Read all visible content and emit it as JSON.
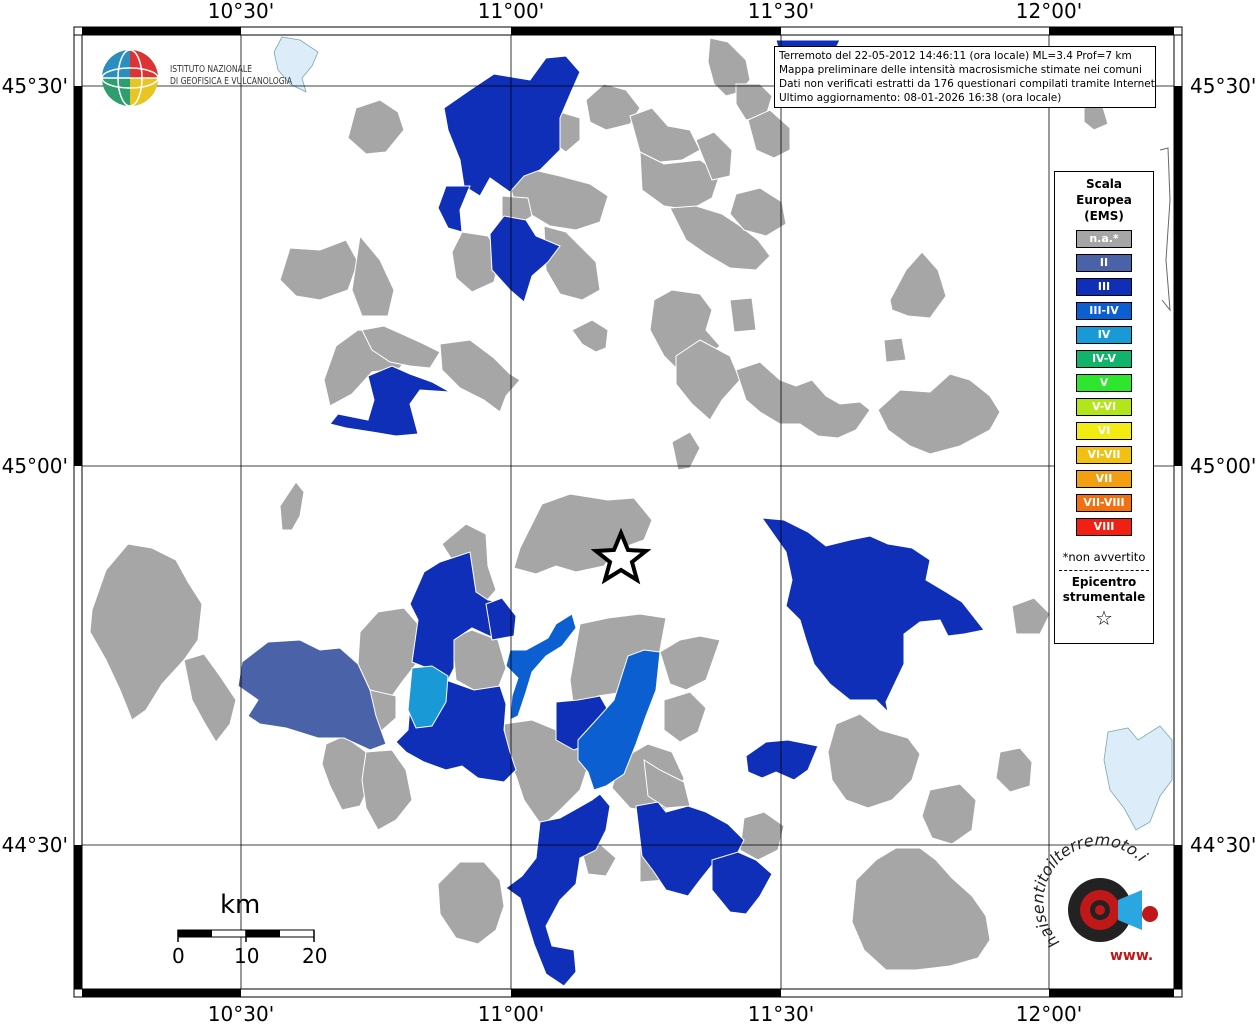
{
  "map": {
    "lon_labels": [
      "10°30'",
      "11°00'",
      "11°30'",
      "12°00'"
    ],
    "lat_labels": [
      "45°30'",
      "45°00'",
      "44°30'"
    ]
  },
  "logo": {
    "line1": "ISTITUTO NAZIONALE",
    "line2": "DI GEOFISICA E VULCANOLOGIA"
  },
  "info": {
    "line1": "Terremoto del 22-05-2012 14:46:11 (ora locale) ML=3.4 Prof=7 km",
    "line2": "Mappa preliminare delle intensità macrosismiche stimate nei comuni",
    "line3": "Dati non verificati estratti da 176 questionari compilati tramite Internet.",
    "line4": "Ultimo aggiornamento: 08-01-2026 16:38 (ora locale)"
  },
  "legend": {
    "title1": "Scala",
    "title2": "Europea",
    "title3": "(EMS)",
    "items": [
      {
        "label": "n.a.*",
        "color": "#a6a6a6"
      },
      {
        "label": "II",
        "color": "#4a63a8"
      },
      {
        "label": "III",
        "color": "#0f2fb8"
      },
      {
        "label": "III-IV",
        "color": "#0c5fd1"
      },
      {
        "label": "IV",
        "color": "#199ad6"
      },
      {
        "label": "IV-V",
        "color": "#12b36b"
      },
      {
        "label": "V",
        "color": "#2ee62e"
      },
      {
        "label": "V-VI",
        "color": "#b3e61a"
      },
      {
        "label": "VI",
        "color": "#f2ec12"
      },
      {
        "label": "VI-VII",
        "color": "#f2bf12"
      },
      {
        "label": "VII",
        "color": "#f2a012"
      },
      {
        "label": "VII-VIII",
        "color": "#f27012"
      },
      {
        "label": "VIII",
        "color": "#f22012"
      }
    ],
    "note": "*non avvertito",
    "epicenter1": "Epicentro",
    "epicenter2": "strumentale",
    "epicenter_symbol": "☆"
  },
  "scale": {
    "unit": "km",
    "labels": [
      "0",
      "10",
      "20"
    ]
  },
  "haisentito": {
    "text": "haisentitoilterremoto.it",
    "www": "www."
  }
}
